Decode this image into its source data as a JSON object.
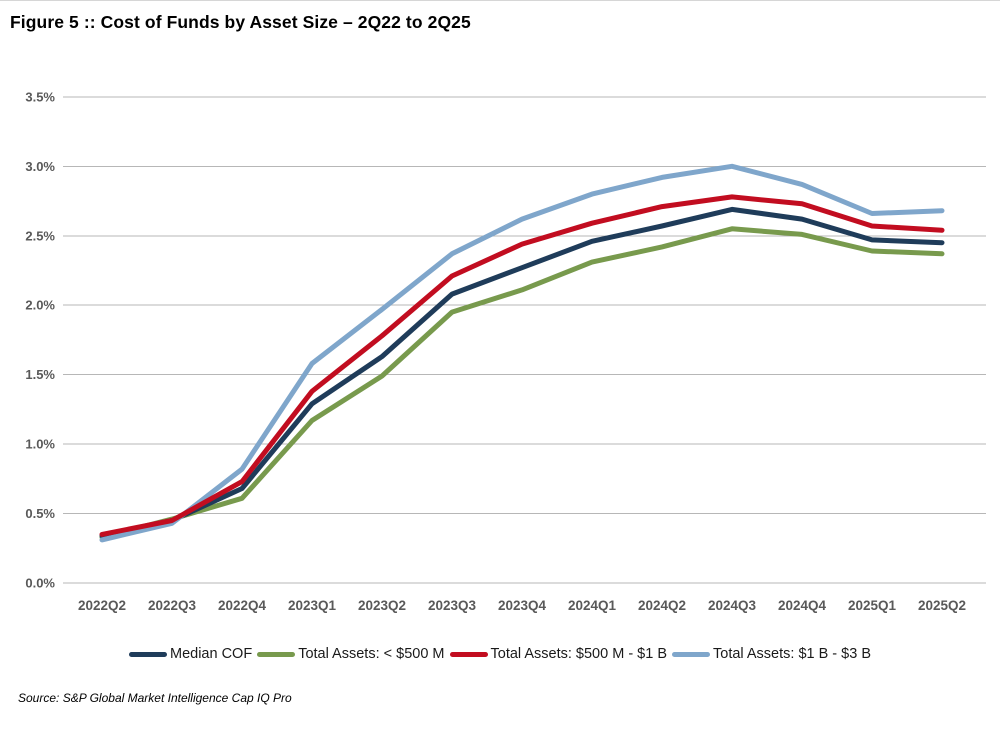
{
  "title": "Figure 5 :: Cost of Funds by Asset Size – 2Q22 to 2Q25",
  "source": "Source: S&P Global Market Intelligence Cap IQ Pro",
  "colors": {
    "gridline": "#b7b7b7",
    "axis_label": "#595959",
    "legend_text": "#1a1a1a",
    "median_cof": "#1f3c5a",
    "under_500m": "#789a4d",
    "m500_to_1b": "#c20d20",
    "b1_to_3b": "#7fa6cb"
  },
  "chart_data": {
    "type": "line",
    "title": "Figure 5 :: Cost of Funds by Asset Size – 2Q22 to 2Q25",
    "xlabel": "",
    "ylabel": "",
    "ylim": [
      0.0,
      3.5
    ],
    "yticks": [
      0.0,
      0.5,
      1.0,
      1.5,
      2.0,
      2.5,
      3.0,
      3.5
    ],
    "ytick_labels": [
      "0.0%",
      "0.5%",
      "1.0%",
      "1.5%",
      "2.0%",
      "2.5%",
      "3.0%",
      "3.5%"
    ],
    "grid": "horizontal",
    "legend_position": "bottom",
    "categories": [
      "2022Q2",
      "2022Q3",
      "2022Q4",
      "2023Q1",
      "2023Q2",
      "2023Q3",
      "2023Q4",
      "2024Q1",
      "2024Q2",
      "2024Q3",
      "2024Q4",
      "2025Q1",
      "2025Q2"
    ],
    "series": [
      {
        "name": "Median COF",
        "color": "#1f3c5a",
        "values": [
          0.34,
          0.45,
          0.68,
          1.29,
          1.63,
          2.08,
          2.27,
          2.46,
          2.57,
          2.69,
          2.62,
          2.47,
          2.45
        ]
      },
      {
        "name": "Total Assets: < $500 M",
        "color": "#789a4d",
        "values": [
          0.33,
          0.46,
          0.61,
          1.17,
          1.49,
          1.95,
          2.11,
          2.31,
          2.42,
          2.55,
          2.51,
          2.39,
          2.37
        ]
      },
      {
        "name": "Total Assets: $500 M - $1 B",
        "color": "#c20d20",
        "values": [
          0.35,
          0.45,
          0.73,
          1.38,
          1.78,
          2.21,
          2.44,
          2.59,
          2.71,
          2.78,
          2.73,
          2.57,
          2.54
        ]
      },
      {
        "name": "Total Assets: $1 B - $3 B",
        "color": "#7fa6cb",
        "values": [
          0.31,
          0.43,
          0.82,
          1.58,
          1.97,
          2.37,
          2.62,
          2.8,
          2.92,
          3.0,
          2.87,
          2.66,
          2.68
        ]
      }
    ]
  }
}
